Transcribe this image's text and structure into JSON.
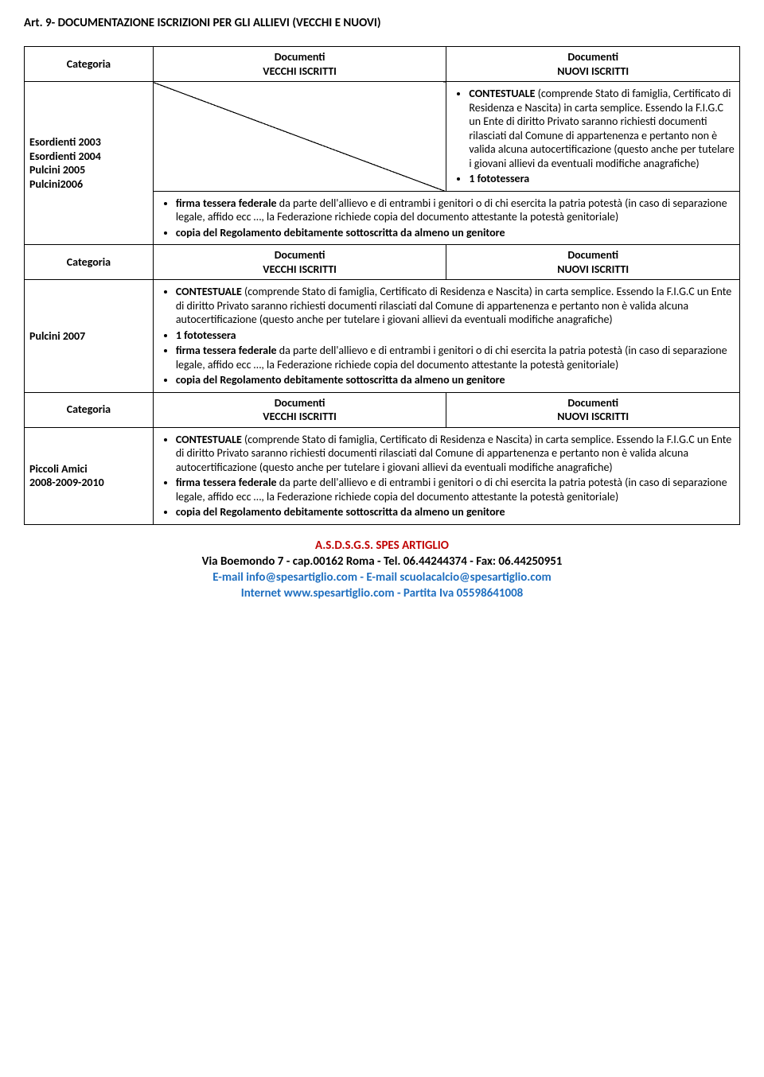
{
  "article_title": "Art. 9- DOCUMENTAZIONE ISCRIZIONI PER GLI ALLIEVI (VECCHI E NUOVI)",
  "headers": {
    "categoria": "Categoria",
    "vecchi": "Documenti\nVECCHI ISCRITTI",
    "nuovi": "Documenti\nNUOVI ISCRITTI"
  },
  "row1": {
    "cat": "Esordienti 2003\nEsordienti 2004\nPulcini 2005\nPulcini2006",
    "nuovi_b1_bold": "CONTESTUALE",
    "nuovi_b1_rest": " (comprende Stato di famiglia, Certificato di Residenza e Nascita) in carta semplice. Essendo la F.I.G.C un Ente di diritto Privato saranno richiesti documenti rilasciati dal Comune di appartenenza e pertanto non è valida alcuna autocertificazione (questo anche per tutelare i giovani allievi da eventuali modifiche anagrafiche)",
    "nuovi_b2_bold": "1 fototessera",
    "full_b1_bold": "firma tessera federale",
    "full_b1_rest": " da parte dell'allievo e di entrambi i genitori o di chi esercita la patria potestà (in caso di separazione legale, affido ecc …, la Federazione richiede copia del documento attestante la potestà genitoriale)",
    "full_b2_bold": "copia del Regolamento debitamente sottoscritta da almeno un genitore"
  },
  "row2": {
    "cat": "Pulcini 2007",
    "b1_bold": "CONTESTUALE",
    "b1_rest": " (comprende Stato di famiglia, Certificato di Residenza e Nascita) in carta semplice. Essendo la F.I.G.C un Ente di diritto Privato saranno richiesti documenti rilasciati dal Comune di appartenenza e pertanto non è valida alcuna autocertificazione (questo anche per tutelare i giovani allievi da eventuali modifiche anagrafiche)",
    "b2_bold": "1 fototessera",
    "b3_bold": "firma tessera federale",
    "b3_rest": " da parte dell'allievo e di entrambi i genitori o di chi esercita la patria potestà (in caso di separazione legale, affido ecc …, la Federazione richiede copia del documento attestante la potestà genitoriale)",
    "b4_bold": "copia del Regolamento debitamente sottoscritta da almeno un genitore"
  },
  "row3": {
    "cat": "Piccoli Amici\n2008-2009-2010",
    "b1_bold": "CONTESTUALE",
    "b1_rest": " (comprende Stato di famiglia, Certificato di Residenza e Nascita) in carta semplice. Essendo la F.I.G.C un Ente di diritto Privato saranno richiesti documenti rilasciati dal Comune di appartenenza e pertanto non è valida alcuna autocertificazione (questo anche per tutelare i giovani allievi da eventuali modifiche anagrafiche)",
    "b2_bold": "firma tessera federale",
    "b2_rest": " da parte dell'allievo e di entrambi i genitori o di chi esercita la patria potestà (in caso di separazione legale, affido ecc …, la Federazione richiede copia del documento attestante la potestà genitoriale)",
    "b3_bold": "copia del Regolamento debitamente sottoscritta da almeno un genitore"
  },
  "footer": {
    "org": "A.S.D.S.G.S. SPES ARTIGLIO",
    "l2": "Via Boemondo 7 - cap.00162 Roma - Tel. 06.44244374 - Fax: 06.44250951",
    "l3": "E-mail info@spesartiglio.com  -  E-mail scuolacalcio@spesartiglio.com",
    "l4": "Internet www.spesartiglio.com - Partita Iva 05598641008"
  }
}
